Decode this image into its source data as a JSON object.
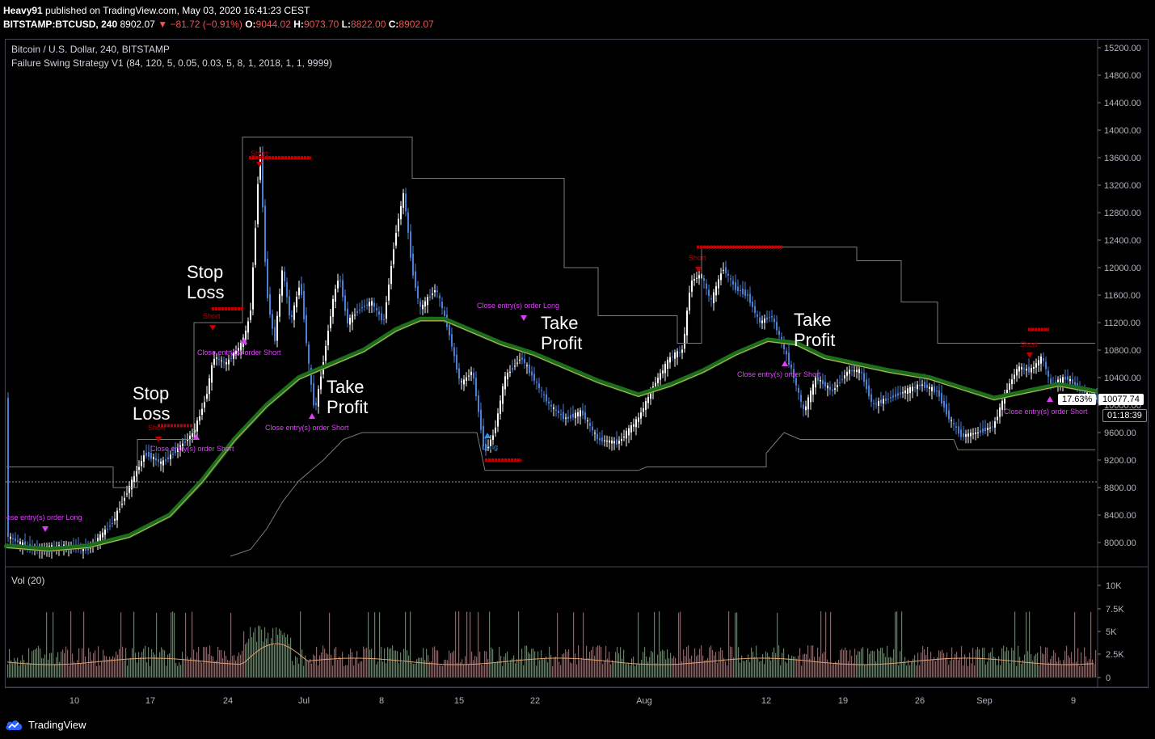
{
  "header": {
    "user": "Heavy91",
    "published": " published on TradingView.com, May 03, 2020 16:41:23 CEST",
    "symbol": "BITSTAMP:BTCUSD, 240",
    "last": "8902.07",
    "change": "−81.72 (−0.91%)",
    "o_label": "O:",
    "o": "9044.02",
    "h_label": "H:",
    "h": "9073.70",
    "l_label": "L:",
    "l": "8822.00",
    "c_label": "C:",
    "c": "8902.07"
  },
  "legend": {
    "title": "Bitcoin / U.S. Dollar, 240, BITSTAMP",
    "strategy": "Failure Swing Strategy V1 (84, 120, 5, 0.05, 0.03, 5, 8, 1, 2018, 1, 1, 9999)",
    "volume": "Vol (20)"
  },
  "price_axis": {
    "ticks": [
      "15200.00",
      "14800.00",
      "14400.00",
      "14000.00",
      "13600.00",
      "13200.00",
      "12800.00",
      "12400.00",
      "12000.00",
      "11600.00",
      "11200.00",
      "10800.00",
      "10400.00",
      "10000.00",
      "9600.00",
      "9200.00",
      "8800.00",
      "8400.00",
      "8000.00"
    ],
    "percent_badge": "17.63%",
    "price_badge": "10077.74",
    "timer_badge": "01:18:39"
  },
  "volume_axis": {
    "ticks": [
      "10K",
      "7.5K",
      "5K",
      "2.5K",
      "0"
    ]
  },
  "time_axis": {
    "ticks": [
      "10",
      "17",
      "24",
      "Jul",
      "8",
      "15",
      "22",
      "Aug",
      "12",
      "19",
      "26",
      "Sep",
      "9"
    ]
  },
  "annotations": {
    "stop_loss_1": [
      "Stop",
      "Loss"
    ],
    "stop_loss_2": [
      "Stop",
      "Loss"
    ],
    "take_profit_1": [
      "Take",
      "Profit"
    ],
    "take_profit_2": [
      "Take",
      "Profit"
    ],
    "take_profit_3": [
      "Take",
      "Profit"
    ]
  },
  "signals": {
    "close_long": "Close entry(s) order Long",
    "close_long_cut": "ose entry(s) order Long",
    "close_short": "Close entry(s) order Short",
    "short": "Short",
    "long": "Long"
  },
  "footer": {
    "brand": "TradingView"
  },
  "colors": {
    "up": "#ffffff",
    "down": "#4a7fd6",
    "ema": "#1b6e1b",
    "sma": "#c9b458",
    "stop": "#c00000",
    "signal": "#e040fb",
    "vol_up": "#26a69a",
    "vol_down": "#ef5350"
  }
}
